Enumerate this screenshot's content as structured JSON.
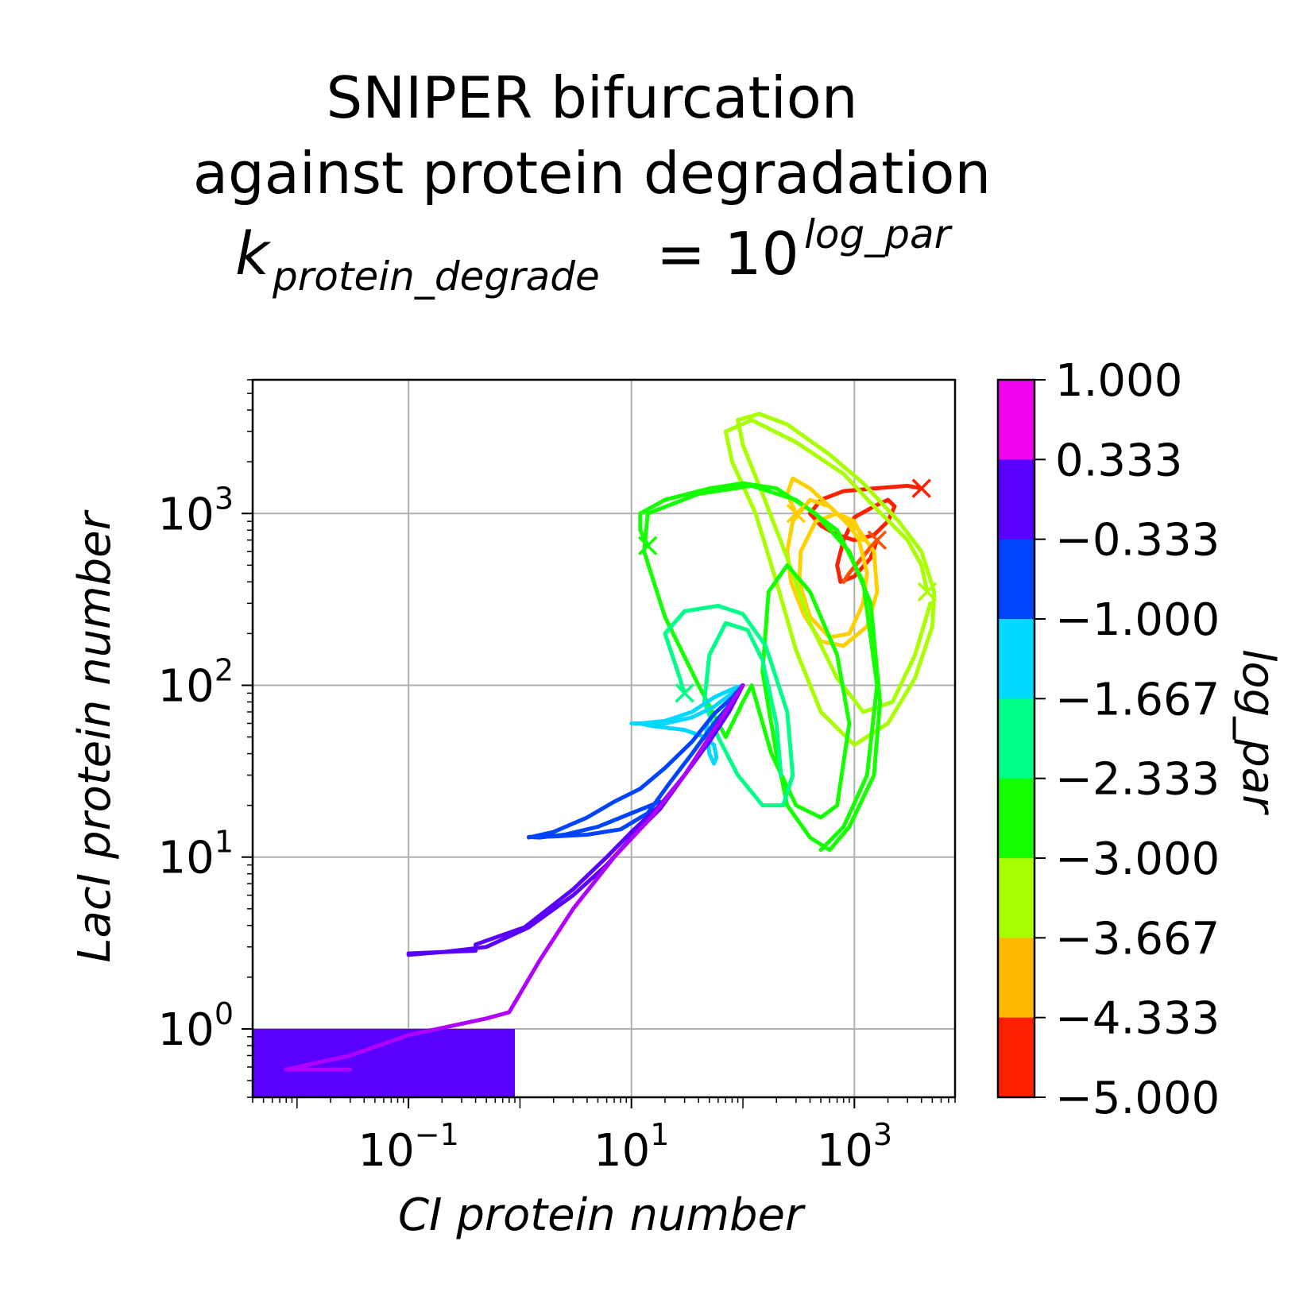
{
  "title": {
    "line1": "SNIPER bifurcation",
    "line2": "against protein degradation",
    "formula_base": "k",
    "formula_sub": "protein_degrade",
    "formula_eq": "= 10",
    "formula_exp": "log_par"
  },
  "chart_data": {
    "type": "line",
    "xscale": "log",
    "yscale": "log",
    "xlabel": "CI protein number",
    "ylabel": "LacI protein number",
    "xlim": [
      0.004,
      8000
    ],
    "ylim": [
      0.4,
      6000
    ],
    "grid": true,
    "x_ticks": [
      {
        "base": "10",
        "exp": "−1",
        "value": 0.1
      },
      {
        "base": "10",
        "exp": "1",
        "value": 10
      },
      {
        "base": "10",
        "exp": "3",
        "value": 1000
      }
    ],
    "y_ticks": [
      {
        "base": "10",
        "exp": "0",
        "value": 1
      },
      {
        "base": "10",
        "exp": "1",
        "value": 10
      },
      {
        "base": "10",
        "exp": "2",
        "value": 100
      },
      {
        "base": "10",
        "exp": "3",
        "value": 1000
      }
    ],
    "colorbar": {
      "label": "log_par",
      "ticks": [
        "1.000",
        "0.333",
        "−0.333",
        "−1.000",
        "−1.667",
        "−2.333",
        "−3.000",
        "−3.667",
        "−4.333",
        "−5.000"
      ],
      "colors": [
        "#f004f0",
        "#5a00ff",
        "#0044ff",
        "#00d8ff",
        "#00ff88",
        "#14ff00",
        "#a8ff00",
        "#ffb800",
        "#ff2000"
      ]
    },
    "region": {
      "x": [
        0.004,
        0.9
      ],
      "y": [
        0.4,
        1.0
      ],
      "color": "#5a00ff"
    },
    "series": [
      {
        "color": "#ff2000",
        "end_marker": true,
        "points": [
          [
            4000,
            1400
          ],
          [
            3000,
            1450
          ],
          [
            1500,
            1400
          ],
          [
            800,
            1350
          ],
          [
            500,
            1200
          ],
          [
            400,
            1000
          ],
          [
            500,
            850
          ],
          [
            700,
            750
          ],
          [
            1000,
            700
          ],
          [
            1500,
            750
          ],
          [
            2000,
            900
          ],
          [
            2300,
            1100
          ],
          [
            2000,
            1200
          ],
          [
            1500,
            1100
          ],
          [
            1000,
            950
          ],
          [
            800,
            700
          ],
          [
            700,
            500
          ],
          [
            750,
            400
          ],
          [
            1000,
            430
          ],
          [
            1400,
            550
          ],
          [
            1600,
            700
          ]
        ]
      },
      {
        "color": "#ff5000",
        "end_marker": true,
        "points": [
          [
            1600,
            700
          ],
          [
            1300,
            600
          ],
          [
            900,
            450
          ],
          [
            800,
            400
          ]
        ]
      },
      {
        "color": "#ffd000",
        "end_marker": true,
        "points": [
          [
            300,
            1000
          ],
          [
            250,
            1300
          ],
          [
            280,
            1600
          ],
          [
            400,
            1400
          ],
          [
            700,
            1000
          ],
          [
            1100,
            800
          ],
          [
            1500,
            600
          ],
          [
            1600,
            350
          ],
          [
            1300,
            220
          ],
          [
            800,
            170
          ],
          [
            500,
            180
          ],
          [
            350,
            260
          ],
          [
            270,
            400
          ],
          [
            250,
            600
          ],
          [
            280,
            900
          ],
          [
            400,
            1200
          ],
          [
            600,
            1100
          ],
          [
            900,
            850
          ],
          [
            1100,
            700
          ],
          [
            1300,
            450
          ],
          [
            1200,
            300
          ],
          [
            900,
            200
          ],
          [
            600,
            190
          ],
          [
            400,
            250
          ],
          [
            320,
            400
          ],
          [
            330,
            600
          ],
          [
            450,
            900
          ],
          [
            700,
            1000
          ],
          [
            1000,
            900
          ],
          [
            1200,
            700
          ]
        ]
      },
      {
        "color": "#a8ff00",
        "end_marker": true,
        "points": [
          [
            4500,
            350
          ],
          [
            4000,
            500
          ],
          [
            3000,
            700
          ],
          [
            1500,
            1100
          ],
          [
            800,
            1700
          ],
          [
            300,
            2600
          ],
          [
            120,
            3500
          ],
          [
            70,
            3000
          ],
          [
            80,
            2000
          ],
          [
            130,
            1000
          ],
          [
            200,
            400
          ],
          [
            300,
            160
          ],
          [
            500,
            70
          ],
          [
            1000,
            45
          ],
          [
            2000,
            60
          ],
          [
            3500,
            110
          ],
          [
            5000,
            220
          ],
          [
            5200,
            350
          ],
          [
            4000,
            600
          ],
          [
            2500,
            900
          ],
          [
            1200,
            1500
          ],
          [
            600,
            2200
          ],
          [
            250,
            3300
          ],
          [
            140,
            3800
          ],
          [
            90,
            3500
          ],
          [
            100,
            2500
          ],
          [
            150,
            1300
          ],
          [
            250,
            550
          ],
          [
            400,
            230
          ],
          [
            700,
            110
          ],
          [
            1200,
            70
          ],
          [
            2200,
            80
          ],
          [
            3500,
            150
          ],
          [
            4800,
            300
          ]
        ]
      },
      {
        "color": "#14ff00",
        "end_marker": true,
        "points": [
          [
            14,
            650
          ],
          [
            12,
            800
          ],
          [
            12,
            1000
          ],
          [
            20,
            1200
          ],
          [
            50,
            1400
          ],
          [
            100,
            1500
          ],
          [
            200,
            1400
          ],
          [
            450,
            1000
          ],
          [
            900,
            600
          ],
          [
            1400,
            300
          ],
          [
            1700,
            80
          ],
          [
            1500,
            30
          ],
          [
            900,
            15
          ],
          [
            600,
            11
          ],
          [
            400,
            13
          ],
          [
            250,
            20
          ],
          [
            200,
            40
          ],
          [
            150,
            120
          ],
          [
            170,
            350
          ],
          [
            250,
            500
          ],
          [
            400,
            350
          ],
          [
            700,
            150
          ],
          [
            900,
            60
          ],
          [
            700,
            20
          ],
          [
            500,
            17
          ],
          [
            300,
            20
          ],
          [
            180,
            40
          ],
          [
            120,
            100
          ],
          [
            100,
            80
          ],
          [
            70,
            50
          ],
          [
            40,
            100
          ],
          [
            20,
            250
          ],
          [
            13,
            600
          ],
          [
            14,
            1000
          ],
          [
            40,
            1300
          ],
          [
            120,
            1450
          ],
          [
            300,
            1200
          ],
          [
            700,
            800
          ],
          [
            1200,
            400
          ],
          [
            1600,
            100
          ],
          [
            1300,
            30
          ],
          [
            800,
            15
          ],
          [
            500,
            11
          ]
        ]
      },
      {
        "color": "#00ff88",
        "end_marker": true,
        "points": [
          [
            30,
            90
          ],
          [
            25,
            130
          ],
          [
            20,
            200
          ],
          [
            30,
            270
          ],
          [
            60,
            290
          ],
          [
            100,
            260
          ],
          [
            160,
            170
          ],
          [
            250,
            70
          ],
          [
            280,
            30
          ],
          [
            230,
            20
          ],
          [
            150,
            20
          ],
          [
            90,
            30
          ],
          [
            60,
            50
          ],
          [
            45,
            80
          ],
          [
            50,
            150
          ],
          [
            70,
            230
          ],
          [
            110,
            210
          ],
          [
            150,
            140
          ],
          [
            200,
            60
          ],
          [
            220,
            30
          ]
        ]
      },
      {
        "color": "#00d8ff",
        "end_marker": false,
        "points": [
          [
            10,
            60
          ],
          [
            20,
            60
          ],
          [
            35,
            65
          ],
          [
            55,
            75
          ],
          [
            80,
            90
          ],
          [
            100,
            100
          ],
          [
            80,
            95
          ],
          [
            55,
            85
          ],
          [
            35,
            70
          ],
          [
            20,
            62
          ],
          [
            12,
            60
          ],
          [
            15,
            58
          ],
          [
            30,
            55
          ],
          [
            45,
            50
          ],
          [
            55,
            45
          ],
          [
            58,
            38
          ],
          [
            55,
            35
          ],
          [
            50,
            40
          ],
          [
            47,
            55
          ],
          [
            48,
            60
          ]
        ]
      },
      {
        "color": "#0044ff",
        "end_marker": false,
        "points": [
          [
            1.2,
            13
          ],
          [
            2,
            14
          ],
          [
            4,
            17
          ],
          [
            7,
            21
          ],
          [
            12,
            25
          ],
          [
            20,
            33
          ],
          [
            35,
            47
          ],
          [
            55,
            68
          ],
          [
            80,
            85
          ],
          [
            100,
            100
          ],
          [
            80,
            80
          ],
          [
            55,
            60
          ],
          [
            35,
            40
          ],
          [
            22,
            27
          ],
          [
            14,
            18
          ],
          [
            8,
            14.5
          ],
          [
            4,
            13.5
          ],
          [
            2,
            13.2
          ],
          [
            1.2,
            13.1
          ],
          [
            1.5,
            13
          ],
          [
            2.5,
            13.5
          ],
          [
            5,
            15
          ],
          [
            10,
            18
          ],
          [
            18,
            21
          ]
        ]
      },
      {
        "color": "#5a00ff",
        "end_marker": false,
        "points": [
          [
            0.1,
            2.75
          ],
          [
            0.2,
            2.8
          ],
          [
            0.4,
            2.85
          ],
          [
            0.4,
            3.1
          ],
          [
            1.1,
            3.9
          ],
          [
            3,
            6.5
          ],
          [
            6,
            10
          ],
          [
            10,
            14
          ],
          [
            18,
            20
          ],
          [
            30,
            30
          ],
          [
            50,
            47
          ],
          [
            75,
            70
          ],
          [
            100,
            100
          ],
          [
            75,
            72
          ],
          [
            50,
            48
          ],
          [
            30,
            30
          ],
          [
            18,
            19
          ],
          [
            10,
            13
          ],
          [
            6,
            9
          ],
          [
            3,
            6
          ],
          [
            1.2,
            3.9
          ],
          [
            0.5,
            3
          ],
          [
            0.2,
            2.8
          ],
          [
            0.1,
            2.7
          ]
        ]
      },
      {
        "color": "#b000ff",
        "end_marker": false,
        "points": [
          [
            100,
            100
          ],
          [
            60,
            60
          ],
          [
            30,
            30
          ],
          [
            15,
            17
          ],
          [
            7,
            10
          ],
          [
            3,
            5
          ],
          [
            1.5,
            2.5
          ],
          [
            0.8,
            1.25
          ],
          [
            0.5,
            1.15
          ],
          [
            0.1,
            0.92
          ],
          [
            0.03,
            0.7
          ],
          [
            0.008,
            0.58
          ],
          [
            0.03,
            0.58
          ]
        ]
      }
    ]
  }
}
